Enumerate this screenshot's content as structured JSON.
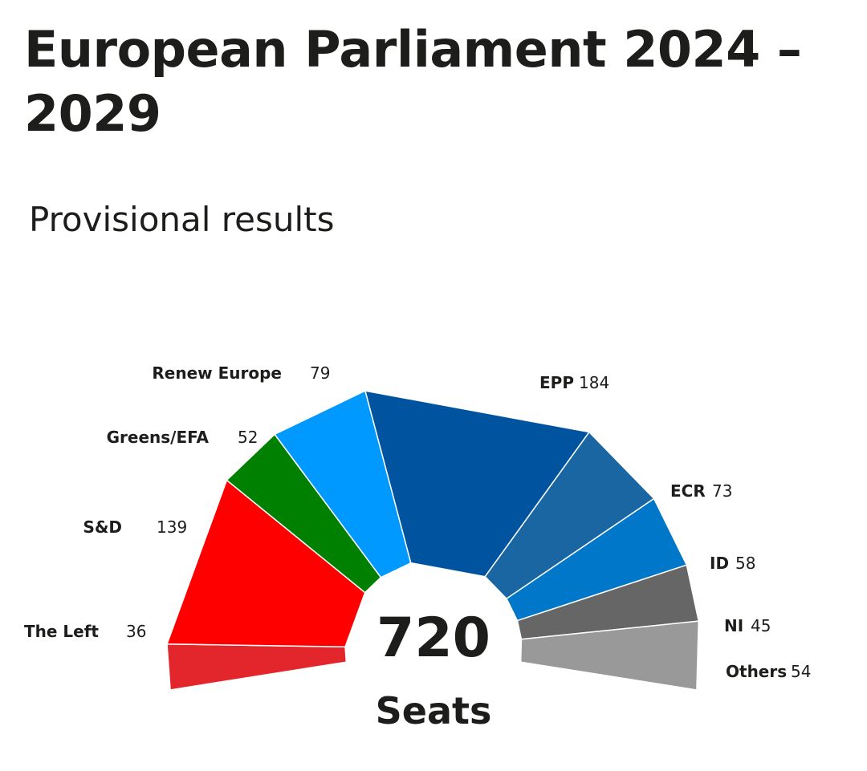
{
  "chart_data": {
    "type": "pie",
    "title": "European Parliament 2024 – 2029",
    "subtitle": "Provisional results",
    "total": "720",
    "total_label": "Seats",
    "series": [
      {
        "name": "The Left",
        "value": 36,
        "color": "#e3262b"
      },
      {
        "name": "S&D",
        "value": 139,
        "color": "#ff0000"
      },
      {
        "name": "Greens/EFA",
        "value": 52,
        "color": "#008000"
      },
      {
        "name": "Renew Europe",
        "value": 79,
        "color": "#0099ff"
      },
      {
        "name": "EPP",
        "value": 184,
        "color": "#00539f"
      },
      {
        "name": "ECR",
        "value": 73,
        "color": "#1a66a3"
      },
      {
        "name": "ID",
        "value": 58,
        "color": "#0077c8"
      },
      {
        "name": "NI",
        "value": 45,
        "color": "#666666"
      },
      {
        "name": "Others",
        "value": 54,
        "color": "#999999"
      }
    ]
  }
}
